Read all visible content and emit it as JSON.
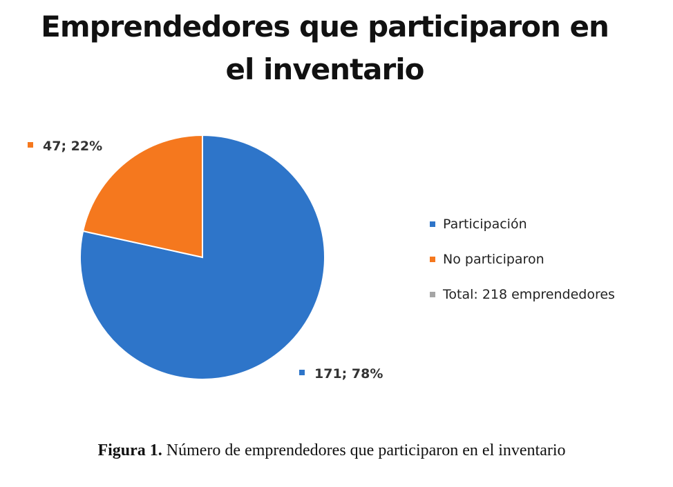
{
  "chart_data": {
    "type": "pie",
    "title": "Emprendedores que participaron en el inventario",
    "title_lines": [
      "Emprendedores que participaron en",
      "el inventario"
    ],
    "slices": [
      {
        "name": "Participación",
        "value": 171,
        "percent": 78,
        "label": "171; 78%",
        "color": "#2E75C9"
      },
      {
        "name": "No participaron",
        "value": 47,
        "percent": 22,
        "label": "47; 22%",
        "color": "#F5781E"
      }
    ],
    "legend": [
      {
        "label": "Participación",
        "color": "#2E75C9"
      },
      {
        "label": "No participaron",
        "color": "#F5781E"
      },
      {
        "label": "Total: 218 emprendedores",
        "color": "#A5A5A5"
      }
    ],
    "legend_position": "right"
  },
  "caption": {
    "prefix": "Figura 1.",
    "text": " Número de emprendedores que participaron en el inventario"
  }
}
